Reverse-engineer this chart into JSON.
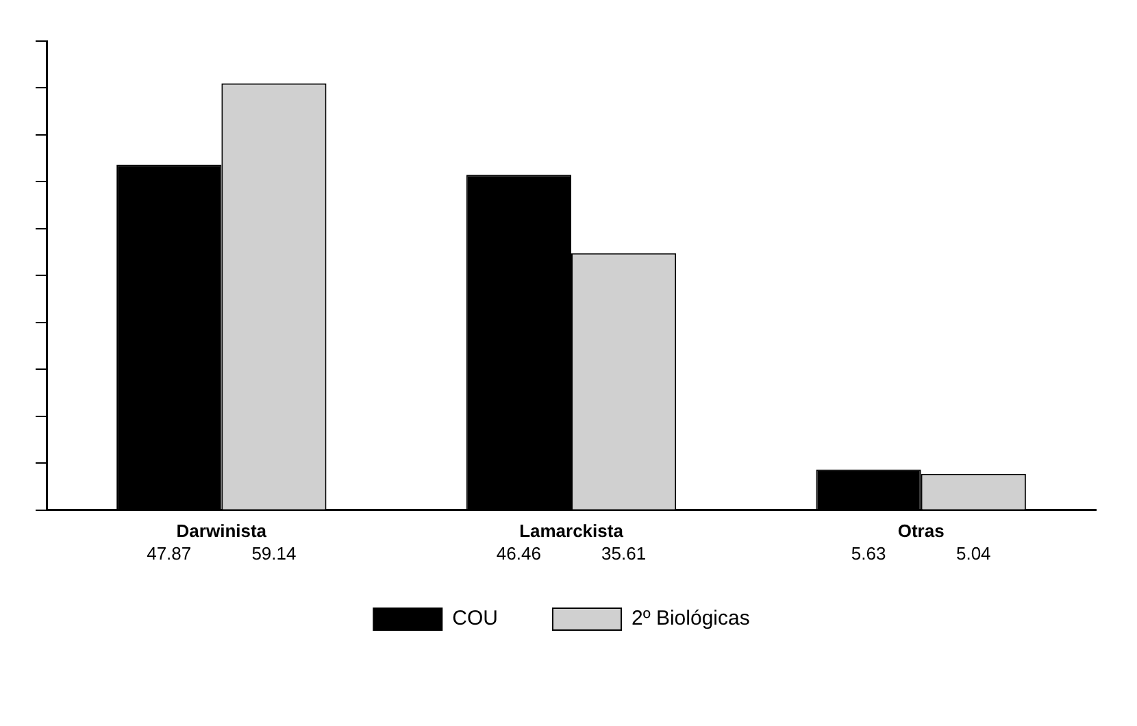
{
  "chart_data": {
    "type": "bar",
    "categories": [
      "Darwinista",
      "Lamarckista",
      "Otras"
    ],
    "series": [
      {
        "name": "COU",
        "color": "#000000",
        "values": [
          47.87,
          46.46,
          5.63
        ]
      },
      {
        "name": "2º Biológicas",
        "color": "#d0d0d0",
        "values": [
          59.14,
          35.61,
          5.04
        ]
      }
    ],
    "ylim": [
      0,
      65
    ],
    "yticks": [
      {
        "value": 0,
        "label": null
      },
      {
        "value": 6.5,
        "label": null
      },
      {
        "value": 13,
        "label": null
      },
      {
        "value": 19.5,
        "label": null
      },
      {
        "value": 26,
        "label": null
      },
      {
        "value": 32.5,
        "label": null
      },
      {
        "value": 39,
        "label": null
      },
      {
        "value": 45.5,
        "label": null
      },
      {
        "value": 52,
        "label": null
      },
      {
        "value": 58.5,
        "label": null
      },
      {
        "value": 65,
        "label": null
      }
    ],
    "tick_labels": "x",
    "data_labels": true,
    "grid": false,
    "legend": "bottom"
  }
}
